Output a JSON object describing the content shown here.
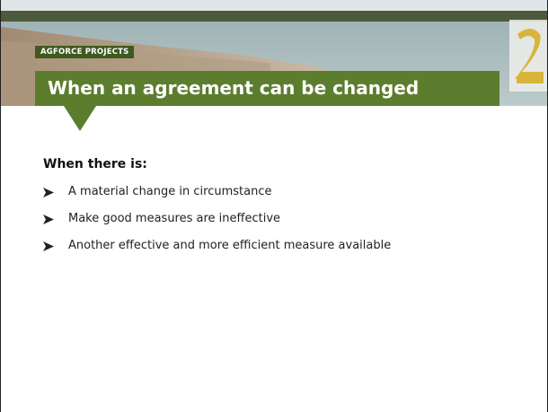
{
  "header": {
    "tag": "AGFORCE PROJECTS",
    "title": "When an agreement can be changed"
  },
  "body": {
    "heading": "When there is:",
    "bullets": [
      "A material change in circumstance",
      "Make good measures are ineffective",
      "Another effective and more efficient measure available"
    ]
  }
}
